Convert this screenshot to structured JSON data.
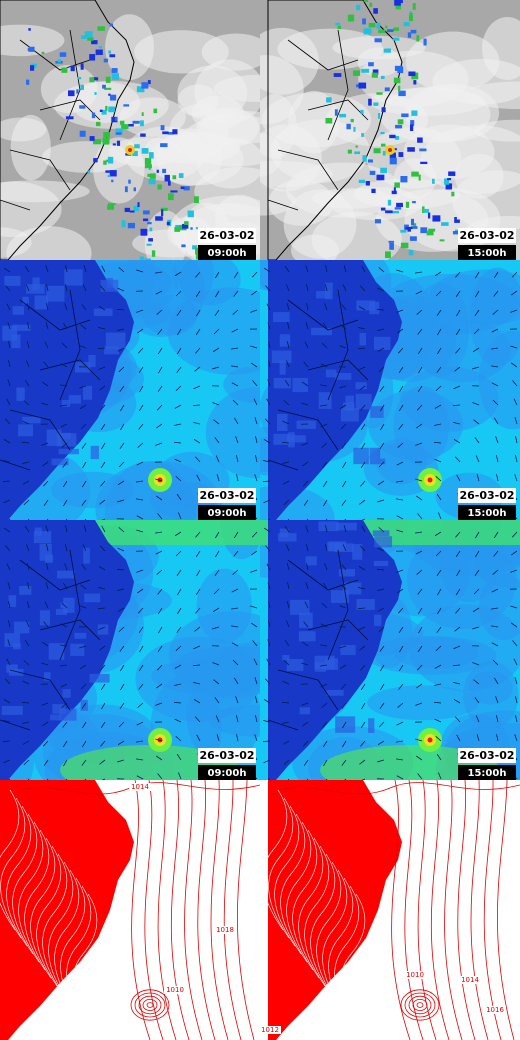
{
  "panels": [
    {
      "date": "26-03-02",
      "time": "09:00h"
    },
    {
      "date": "26-03-02",
      "time": "15:00h"
    },
    {
      "date": "26-03-02",
      "time": "09:00h"
    },
    {
      "date": "26-03-02",
      "time": "15:00h"
    },
    {
      "date": "26-03-02",
      "time": "09:00h"
    },
    {
      "date": "26-03-02",
      "time": "15:00h"
    },
    {
      "contour_labels": [
        "1014",
        "1018",
        "1010"
      ]
    },
    {
      "contour_labels": [
        "1014",
        "1010",
        "1016",
        "1012"
      ]
    }
  ]
}
